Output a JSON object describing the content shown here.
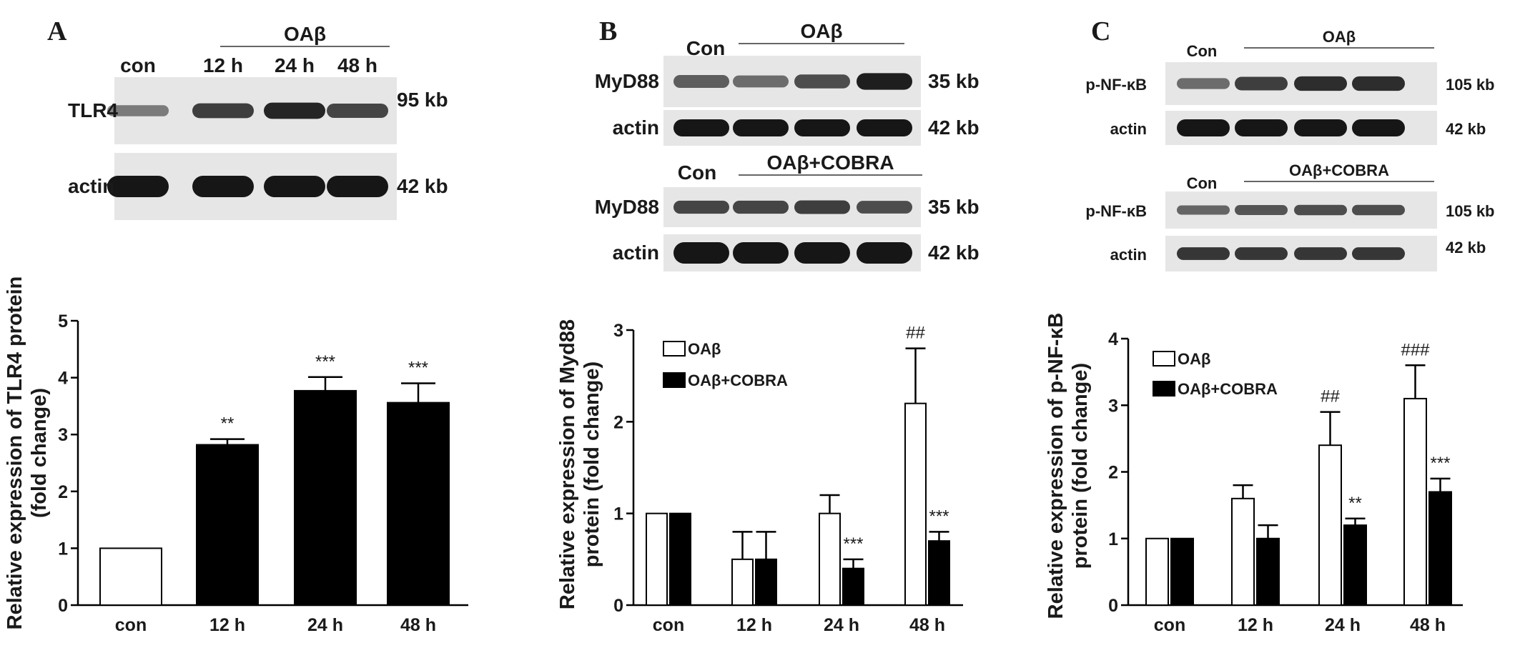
{
  "colors": {
    "filled": "#000000",
    "open": "#ffffff",
    "blot_bg": "#e6e6e6",
    "band": "#161616"
  },
  "panel_a": {
    "letter": "A",
    "blot": {
      "header_lanes": [
        "con",
        "12 h",
        "24 h",
        "48 h"
      ],
      "bracket_label": "OAβ",
      "rows": [
        {
          "label": "TLR4",
          "size": "95 kb",
          "band_intensity": [
            0.35,
            0.75,
            0.9,
            0.7
          ]
        },
        {
          "label": "actin",
          "size": "42 kb",
          "band_intensity": [
            1,
            1,
            1,
            1
          ]
        }
      ]
    }
  },
  "panel_b": {
    "letter": "B",
    "blots": [
      {
        "header_con": "Con",
        "bracket_label": "OAβ",
        "rows": [
          {
            "label": "MyD88",
            "size": "35 kb",
            "band_intensity": [
              0.55,
              0.45,
              0.65,
              0.95
            ]
          },
          {
            "label": "actin",
            "size": "42 kb",
            "band_intensity": [
              1,
              1,
              1,
              1
            ]
          }
        ]
      },
      {
        "header_con": "Con",
        "bracket_label": "OAβ+COBRA",
        "rows": [
          {
            "label": "MyD88",
            "size": "35 kb",
            "band_intensity": [
              0.7,
              0.7,
              0.75,
              0.65
            ]
          },
          {
            "label": "actin",
            "size": "42 kb",
            "band_intensity": [
              1,
              1,
              1,
              1
            ]
          }
        ]
      }
    ]
  },
  "panel_c": {
    "letter": "C",
    "blots": [
      {
        "header_con": "Con",
        "bracket_label": "OAβ",
        "rows": [
          {
            "label": "p-NF-κB",
            "size": "105 kb",
            "band_intensity": [
              0.45,
              0.75,
              0.85,
              0.85
            ]
          },
          {
            "label": "actin",
            "size": "42 kb",
            "band_intensity": [
              1,
              1,
              1,
              1
            ]
          }
        ]
      },
      {
        "header_con": "Con",
        "bracket_label": "OAβ+COBRA",
        "rows": [
          {
            "label": "p-NF-κB",
            "size": "105 kb",
            "band_intensity": [
              0.5,
              0.6,
              0.65,
              0.65
            ]
          },
          {
            "label": "actin",
            "size": "42 kb",
            "band_intensity": [
              0.8,
              0.8,
              0.8,
              0.8
            ]
          }
        ]
      }
    ]
  },
  "chart_data": [
    {
      "type": "bar",
      "panel": "A",
      "ylabel": "Relative expression of TLR4 protein (fold change)",
      "ylabel_lines": [
        "Relative expression of TLR4 protein",
        "(fold change)"
      ],
      "categories": [
        "con",
        "12 h",
        "24 h",
        "48 h"
      ],
      "ylim": [
        0,
        5
      ],
      "yticks": [
        0,
        1,
        2,
        3,
        4,
        5
      ],
      "series": [
        {
          "values": [
            1.0,
            2.82,
            3.77,
            3.56
          ],
          "errors": [
            0,
            0.1,
            0.24,
            0.34
          ],
          "fills": [
            "open",
            "filled",
            "filled",
            "filled"
          ],
          "significance": [
            "",
            "**",
            "***",
            "***"
          ]
        }
      ]
    },
    {
      "type": "bar",
      "panel": "B",
      "ylabel": "Relative expression of Myd88 protein (fold change)",
      "ylabel_lines": [
        "Relative expression of Myd88",
        "protein (fold change)"
      ],
      "categories": [
        "con",
        "12 h",
        "24 h",
        "48 h"
      ],
      "ylim": [
        0,
        3
      ],
      "yticks": [
        0,
        1,
        2,
        3
      ],
      "legend_position": "top-left",
      "series": [
        {
          "name": "OAβ",
          "fill": "open",
          "values": [
            1.0,
            0.5,
            1.0,
            2.2
          ],
          "errors": [
            0,
            0.3,
            0.2,
            0.6
          ],
          "significance": [
            "",
            "",
            "",
            "##"
          ]
        },
        {
          "name": "OAβ+COBRA",
          "fill": "filled",
          "values": [
            1.0,
            0.5,
            0.4,
            0.7
          ],
          "errors": [
            0,
            0.3,
            0.1,
            0.1
          ],
          "significance": [
            "",
            "",
            "***",
            "***"
          ]
        }
      ]
    },
    {
      "type": "bar",
      "panel": "C",
      "ylabel": "Relative expression of p-NF-κB protein (fold change)",
      "ylabel_lines": [
        "Relative expression of p-NF-κB",
        "protein (fold change)"
      ],
      "categories": [
        "con",
        "12 h",
        "24 h",
        "48 h"
      ],
      "ylim": [
        0,
        4
      ],
      "yticks": [
        0,
        1,
        2,
        3,
        4
      ],
      "legend_position": "top-left",
      "series": [
        {
          "name": "OAβ",
          "fill": "open",
          "values": [
            1.0,
            1.6,
            2.4,
            3.1
          ],
          "errors": [
            0,
            0.2,
            0.5,
            0.5
          ],
          "significance": [
            "",
            "",
            "##",
            "###"
          ]
        },
        {
          "name": "OAβ+COBRA",
          "fill": "filled",
          "values": [
            1.0,
            1.0,
            1.2,
            1.7
          ],
          "errors": [
            0,
            0.2,
            0.1,
            0.2
          ],
          "significance": [
            "",
            "",
            "**",
            "***"
          ]
        }
      ]
    }
  ]
}
